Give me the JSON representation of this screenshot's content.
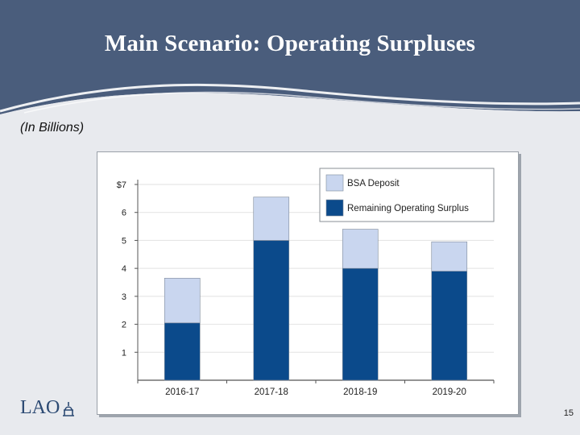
{
  "slide": {
    "title": "Main Scenario: Operating Surpluses",
    "subtitle": "(In Billions)",
    "logo_text": "LAO",
    "page_number": "15"
  },
  "colors": {
    "header_bg": "#4a5d7c",
    "bsa_deposit": "#c9d6ef",
    "remaining_surplus": "#0b4a8b"
  },
  "chart_data": {
    "type": "bar",
    "stacked": true,
    "categories": [
      "2016-17",
      "2017-18",
      "2018-19",
      "2019-20"
    ],
    "series": [
      {
        "name": "Remaining Operating Surplus",
        "values": [
          2.05,
          5.0,
          4.0,
          3.9
        ]
      },
      {
        "name": "BSA Deposit",
        "values": [
          1.6,
          1.55,
          1.4,
          1.05
        ]
      }
    ],
    "ylim": [
      0,
      7
    ],
    "yticks": [
      1,
      2,
      3,
      4,
      5,
      6,
      7
    ],
    "ytick_labels": [
      "1",
      "2",
      "3",
      "4",
      "5",
      "6",
      "$7"
    ],
    "grid": true,
    "legend_position": "top-right",
    "legend_order": [
      "BSA Deposit",
      "Remaining Operating Surplus"
    ]
  }
}
